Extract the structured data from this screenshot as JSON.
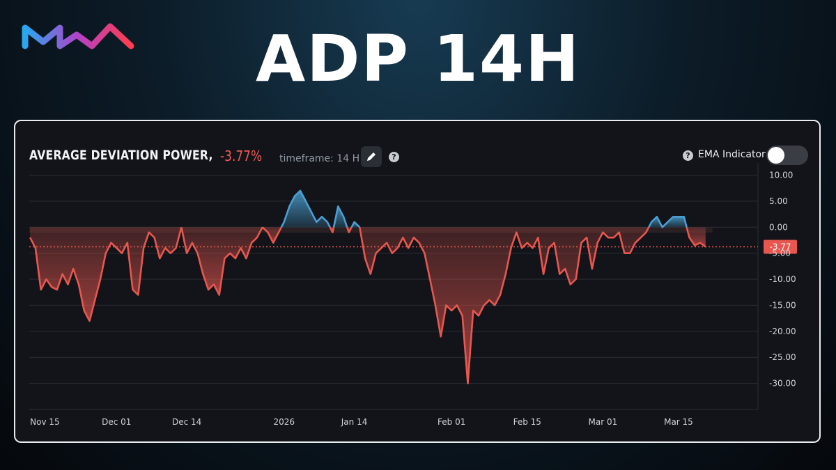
{
  "brand": {
    "logo_icon": "wave-logo-icon"
  },
  "headline": "ADP 14H",
  "header": {
    "title": "AVERAGE DEVIATION POWER,",
    "current_value": "-3.77%",
    "timeframe": "timeframe: 14 H",
    "ema_label": "EMA Indicator",
    "ema_enabled": false
  },
  "colors": {
    "positive": "#4a9fd0",
    "negative": "#e8574f",
    "background": "#121419"
  },
  "chart_data": {
    "type": "area",
    "title": "AVERAGE DEVIATION POWER,",
    "xlabel": "",
    "ylabel": "",
    "ylim": [
      -35,
      11
    ],
    "yticks": [
      "10.00",
      "5.00",
      "0.00",
      "-5.00",
      "-10.00",
      "-15.00",
      "-20.00",
      "-25.00",
      "-30.00"
    ],
    "ytick_values": [
      10,
      5,
      0,
      -5,
      -10,
      -15,
      -20,
      -25,
      -30
    ],
    "xticks": [
      {
        "label": "Nov 15",
        "date": "2025-11-15"
      },
      {
        "label": "Dec 01",
        "date": "2025-12-01"
      },
      {
        "label": "Dec 14",
        "date": "2025-12-14"
      },
      {
        "label": "2026",
        "date": "2026-01-01"
      },
      {
        "label": "Jan 14",
        "date": "2026-01-14"
      },
      {
        "label": "Feb 01",
        "date": "2026-02-01"
      },
      {
        "label": "Feb 15",
        "date": "2026-02-15"
      },
      {
        "label": "Mar 01",
        "date": "2026-03-01"
      },
      {
        "label": "Mar 15",
        "date": "2026-03-15"
      }
    ],
    "current_marker": {
      "value": -3.77,
      "label": "-3.77"
    },
    "grid": true,
    "series": [
      {
        "values": [
          [
            "2025-11-15",
            -2
          ],
          [
            "2025-11-16",
            -4
          ],
          [
            "2025-11-17",
            -12
          ],
          [
            "2025-11-18",
            -10
          ],
          [
            "2025-11-19",
            -11.5
          ],
          [
            "2025-11-20",
            -12
          ],
          [
            "2025-11-21",
            -9
          ],
          [
            "2025-11-22",
            -11
          ],
          [
            "2025-11-23",
            -8
          ],
          [
            "2025-11-24",
            -11
          ],
          [
            "2025-11-25",
            -16
          ],
          [
            "2025-11-26",
            -18
          ],
          [
            "2025-11-27",
            -14
          ],
          [
            "2025-11-28",
            -10
          ],
          [
            "2025-11-29",
            -5
          ],
          [
            "2025-11-30",
            -3
          ],
          [
            "2025-12-01",
            -4
          ],
          [
            "2025-12-02",
            -5
          ],
          [
            "2025-12-03",
            -3
          ],
          [
            "2025-12-04",
            -12
          ],
          [
            "2025-12-05",
            -13
          ],
          [
            "2025-12-06",
            -4
          ],
          [
            "2025-12-07",
            -1
          ],
          [
            "2025-12-08",
            -2
          ],
          [
            "2025-12-09",
            -6
          ],
          [
            "2025-12-10",
            -4
          ],
          [
            "2025-12-11",
            -5
          ],
          [
            "2025-12-12",
            -4
          ],
          [
            "2025-12-13",
            0
          ],
          [
            "2025-12-14",
            -5
          ],
          [
            "2025-12-15",
            -3
          ],
          [
            "2025-12-16",
            -5
          ],
          [
            "2025-12-17",
            -9
          ],
          [
            "2025-12-18",
            -12
          ],
          [
            "2025-12-19",
            -11
          ],
          [
            "2025-12-20",
            -13
          ],
          [
            "2025-12-21",
            -6
          ],
          [
            "2025-12-22",
            -5
          ],
          [
            "2025-12-23",
            -6
          ],
          [
            "2025-12-24",
            -4
          ],
          [
            "2025-12-25",
            -6
          ],
          [
            "2025-12-26",
            -3
          ],
          [
            "2025-12-27",
            -2
          ],
          [
            "2025-12-28",
            0
          ],
          [
            "2025-12-29",
            -1
          ],
          [
            "2025-12-30",
            -3
          ],
          [
            "2025-12-31",
            -1
          ],
          [
            "2026-01-01",
            1
          ],
          [
            "2026-01-02",
            4
          ],
          [
            "2026-01-03",
            6
          ],
          [
            "2026-01-04",
            7
          ],
          [
            "2026-01-05",
            5
          ],
          [
            "2026-01-06",
            3
          ],
          [
            "2026-01-07",
            1
          ],
          [
            "2026-01-08",
            2
          ],
          [
            "2026-01-09",
            1
          ],
          [
            "2026-01-10",
            -1
          ],
          [
            "2026-01-11",
            4
          ],
          [
            "2026-01-12",
            2
          ],
          [
            "2026-01-13",
            -1
          ],
          [
            "2026-01-14",
            1
          ],
          [
            "2026-01-15",
            0
          ],
          [
            "2026-01-16",
            -6
          ],
          [
            "2026-01-17",
            -9
          ],
          [
            "2026-01-18",
            -5
          ],
          [
            "2026-01-19",
            -4
          ],
          [
            "2026-01-20",
            -3
          ],
          [
            "2026-01-21",
            -5
          ],
          [
            "2026-01-22",
            -4
          ],
          [
            "2026-01-23",
            -2
          ],
          [
            "2026-01-24",
            -4
          ],
          [
            "2026-01-25",
            -2
          ],
          [
            "2026-01-26",
            -3
          ],
          [
            "2026-01-27",
            -5
          ],
          [
            "2026-01-28",
            -10
          ],
          [
            "2026-01-29",
            -15
          ],
          [
            "2026-01-30",
            -21
          ],
          [
            "2026-01-31",
            -15
          ],
          [
            "2026-02-01",
            -16
          ],
          [
            "2026-02-02",
            -15
          ],
          [
            "2026-02-03",
            -17
          ],
          [
            "2026-02-04",
            -30
          ],
          [
            "2026-02-05",
            -16
          ],
          [
            "2026-02-06",
            -17
          ],
          [
            "2026-02-07",
            -15
          ],
          [
            "2026-02-08",
            -14
          ],
          [
            "2026-02-09",
            -15
          ],
          [
            "2026-02-10",
            -13
          ],
          [
            "2026-02-11",
            -9
          ],
          [
            "2026-02-12",
            -4
          ],
          [
            "2026-02-13",
            -1
          ],
          [
            "2026-02-14",
            -4
          ],
          [
            "2026-02-15",
            -3
          ],
          [
            "2026-02-16",
            -4
          ],
          [
            "2026-02-17",
            -2
          ],
          [
            "2026-02-18",
            -9
          ],
          [
            "2026-02-19",
            -4
          ],
          [
            "2026-02-20",
            -3
          ],
          [
            "2026-02-21",
            -9
          ],
          [
            "2026-02-22",
            -8
          ],
          [
            "2026-02-23",
            -11
          ],
          [
            "2026-02-24",
            -10
          ],
          [
            "2026-02-25",
            -3
          ],
          [
            "2026-02-26",
            -2
          ],
          [
            "2026-02-27",
            -8
          ],
          [
            "2026-02-28",
            -3
          ],
          [
            "2026-03-01",
            -1
          ],
          [
            "2026-03-02",
            -2
          ],
          [
            "2026-03-03",
            -2
          ],
          [
            "2026-03-04",
            -1
          ],
          [
            "2026-03-05",
            -5
          ],
          [
            "2026-03-06",
            -5
          ],
          [
            "2026-03-07",
            -3
          ],
          [
            "2026-03-08",
            -2
          ],
          [
            "2026-03-09",
            -1
          ],
          [
            "2026-03-10",
            1
          ],
          [
            "2026-03-11",
            2
          ],
          [
            "2026-03-12",
            0
          ],
          [
            "2026-03-13",
            1
          ],
          [
            "2026-03-14",
            2
          ],
          [
            "2026-03-15",
            2
          ],
          [
            "2026-03-16",
            2
          ],
          [
            "2026-03-17",
            -2
          ],
          [
            "2026-03-18",
            -3.5
          ],
          [
            "2026-03-19",
            -3
          ],
          [
            "2026-03-20",
            -3.77
          ]
        ]
      }
    ]
  }
}
